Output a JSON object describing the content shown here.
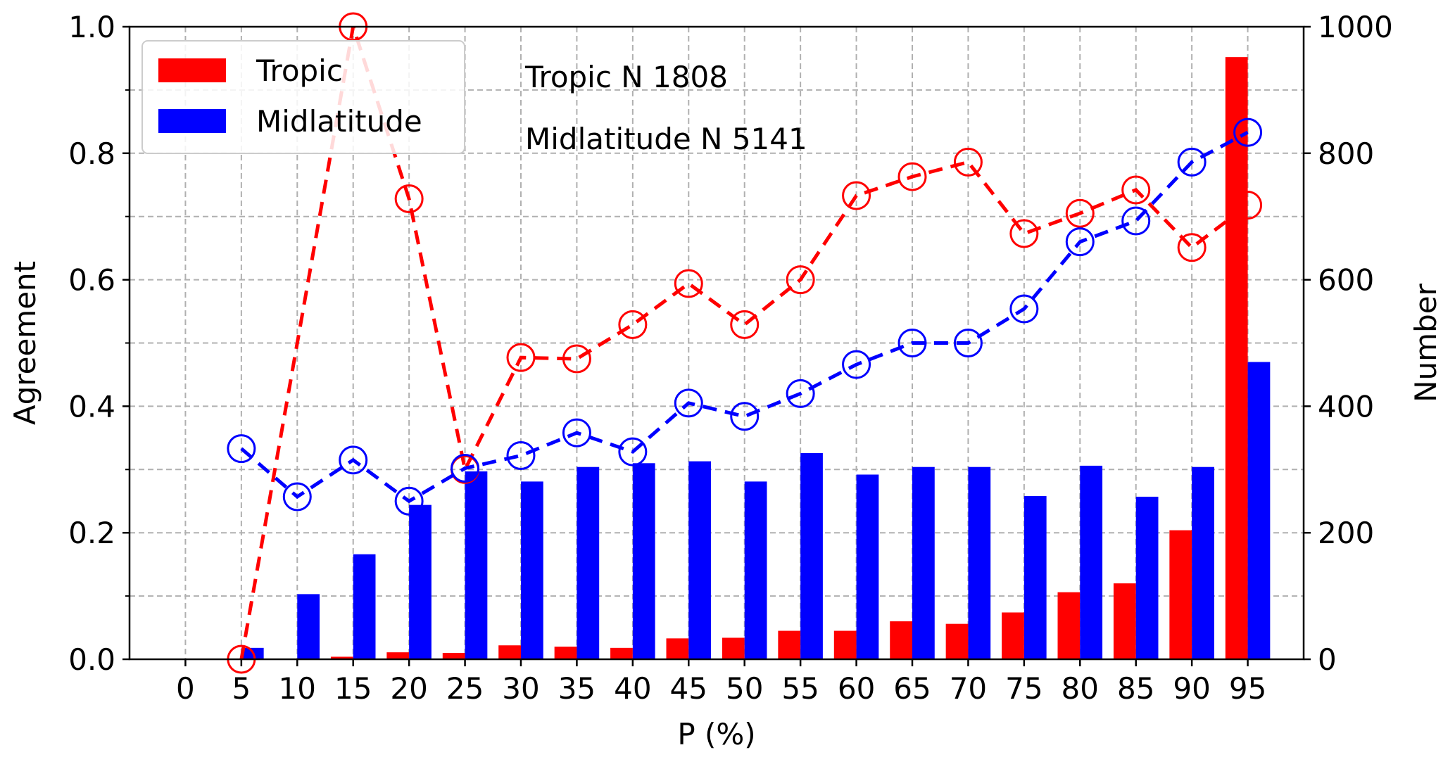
{
  "chart_data": {
    "type": "bar",
    "xlabel": "P (%)",
    "ylabel": "Agreement",
    "ylabel_right": "Number",
    "x": [
      0,
      5,
      10,
      15,
      20,
      25,
      30,
      35,
      40,
      45,
      50,
      55,
      60,
      65,
      70,
      75,
      80,
      85,
      90,
      95
    ],
    "x_tick_labels": [
      "0",
      "5",
      "10",
      "15",
      "20",
      "25",
      "30",
      "35",
      "40",
      "45",
      "50",
      "55",
      "60",
      "65",
      "70",
      "75",
      "80",
      "85",
      "90",
      "95"
    ],
    "xlim": [
      -5,
      100
    ],
    "ylim": [
      0,
      1.0
    ],
    "ylim_right": [
      0,
      1000
    ],
    "y_tick_labels": [
      "0.0",
      "0.2",
      "0.4",
      "0.6",
      "0.8",
      "1.0"
    ],
    "y_tick_values": [
      0,
      0.2,
      0.4,
      0.6,
      0.8,
      1.0
    ],
    "y_right_tick_labels": [
      "0",
      "200",
      "400",
      "600",
      "800",
      "1000"
    ],
    "y_right_tick_values": [
      0,
      200,
      400,
      600,
      800,
      1000
    ],
    "grid": true,
    "legend_position": "top-left",
    "annotations": [
      "Tropic N 1808",
      "Midlatitude N 5141"
    ],
    "bars": [
      {
        "name": "Tropic",
        "color": "#ff0000",
        "axis": "right",
        "values": [
          0,
          0,
          0,
          4,
          11,
          10,
          22,
          20,
          18,
          33,
          34,
          45,
          45,
          60,
          56,
          74,
          106,
          120,
          204,
          952
        ]
      },
      {
        "name": "Midlatitude",
        "color": "#0000ff",
        "axis": "right",
        "values": [
          0,
          18,
          103,
          166,
          244,
          297,
          281,
          304,
          310,
          313,
          281,
          326,
          292,
          304,
          304,
          258,
          306,
          257,
          304,
          470
        ]
      }
    ],
    "lines": [
      {
        "color": "#ff0000",
        "axis": "left",
        "style": "dashed-open-circle",
        "x": [
          5,
          15,
          20,
          25,
          30,
          35,
          40,
          45,
          50,
          55,
          60,
          65,
          70,
          75,
          80,
          85,
          90,
          95
        ],
        "values": [
          0.0,
          1.0,
          0.728,
          0.3,
          0.477,
          0.475,
          0.529,
          0.594,
          0.529,
          0.6,
          0.733,
          0.763,
          0.786,
          0.673,
          0.705,
          0.742,
          0.651,
          0.718
        ]
      },
      {
        "color": "#0000ff",
        "axis": "left",
        "style": "dashed-open-circle",
        "x": [
          5,
          10,
          15,
          20,
          25,
          30,
          35,
          40,
          45,
          50,
          55,
          60,
          65,
          70,
          75,
          80,
          85,
          90,
          95
        ],
        "values": [
          0.333,
          0.257,
          0.315,
          0.25,
          0.302,
          0.322,
          0.358,
          0.328,
          0.405,
          0.384,
          0.42,
          0.466,
          0.5,
          0.5,
          0.554,
          0.66,
          0.693,
          0.786,
          0.833
        ]
      }
    ]
  }
}
